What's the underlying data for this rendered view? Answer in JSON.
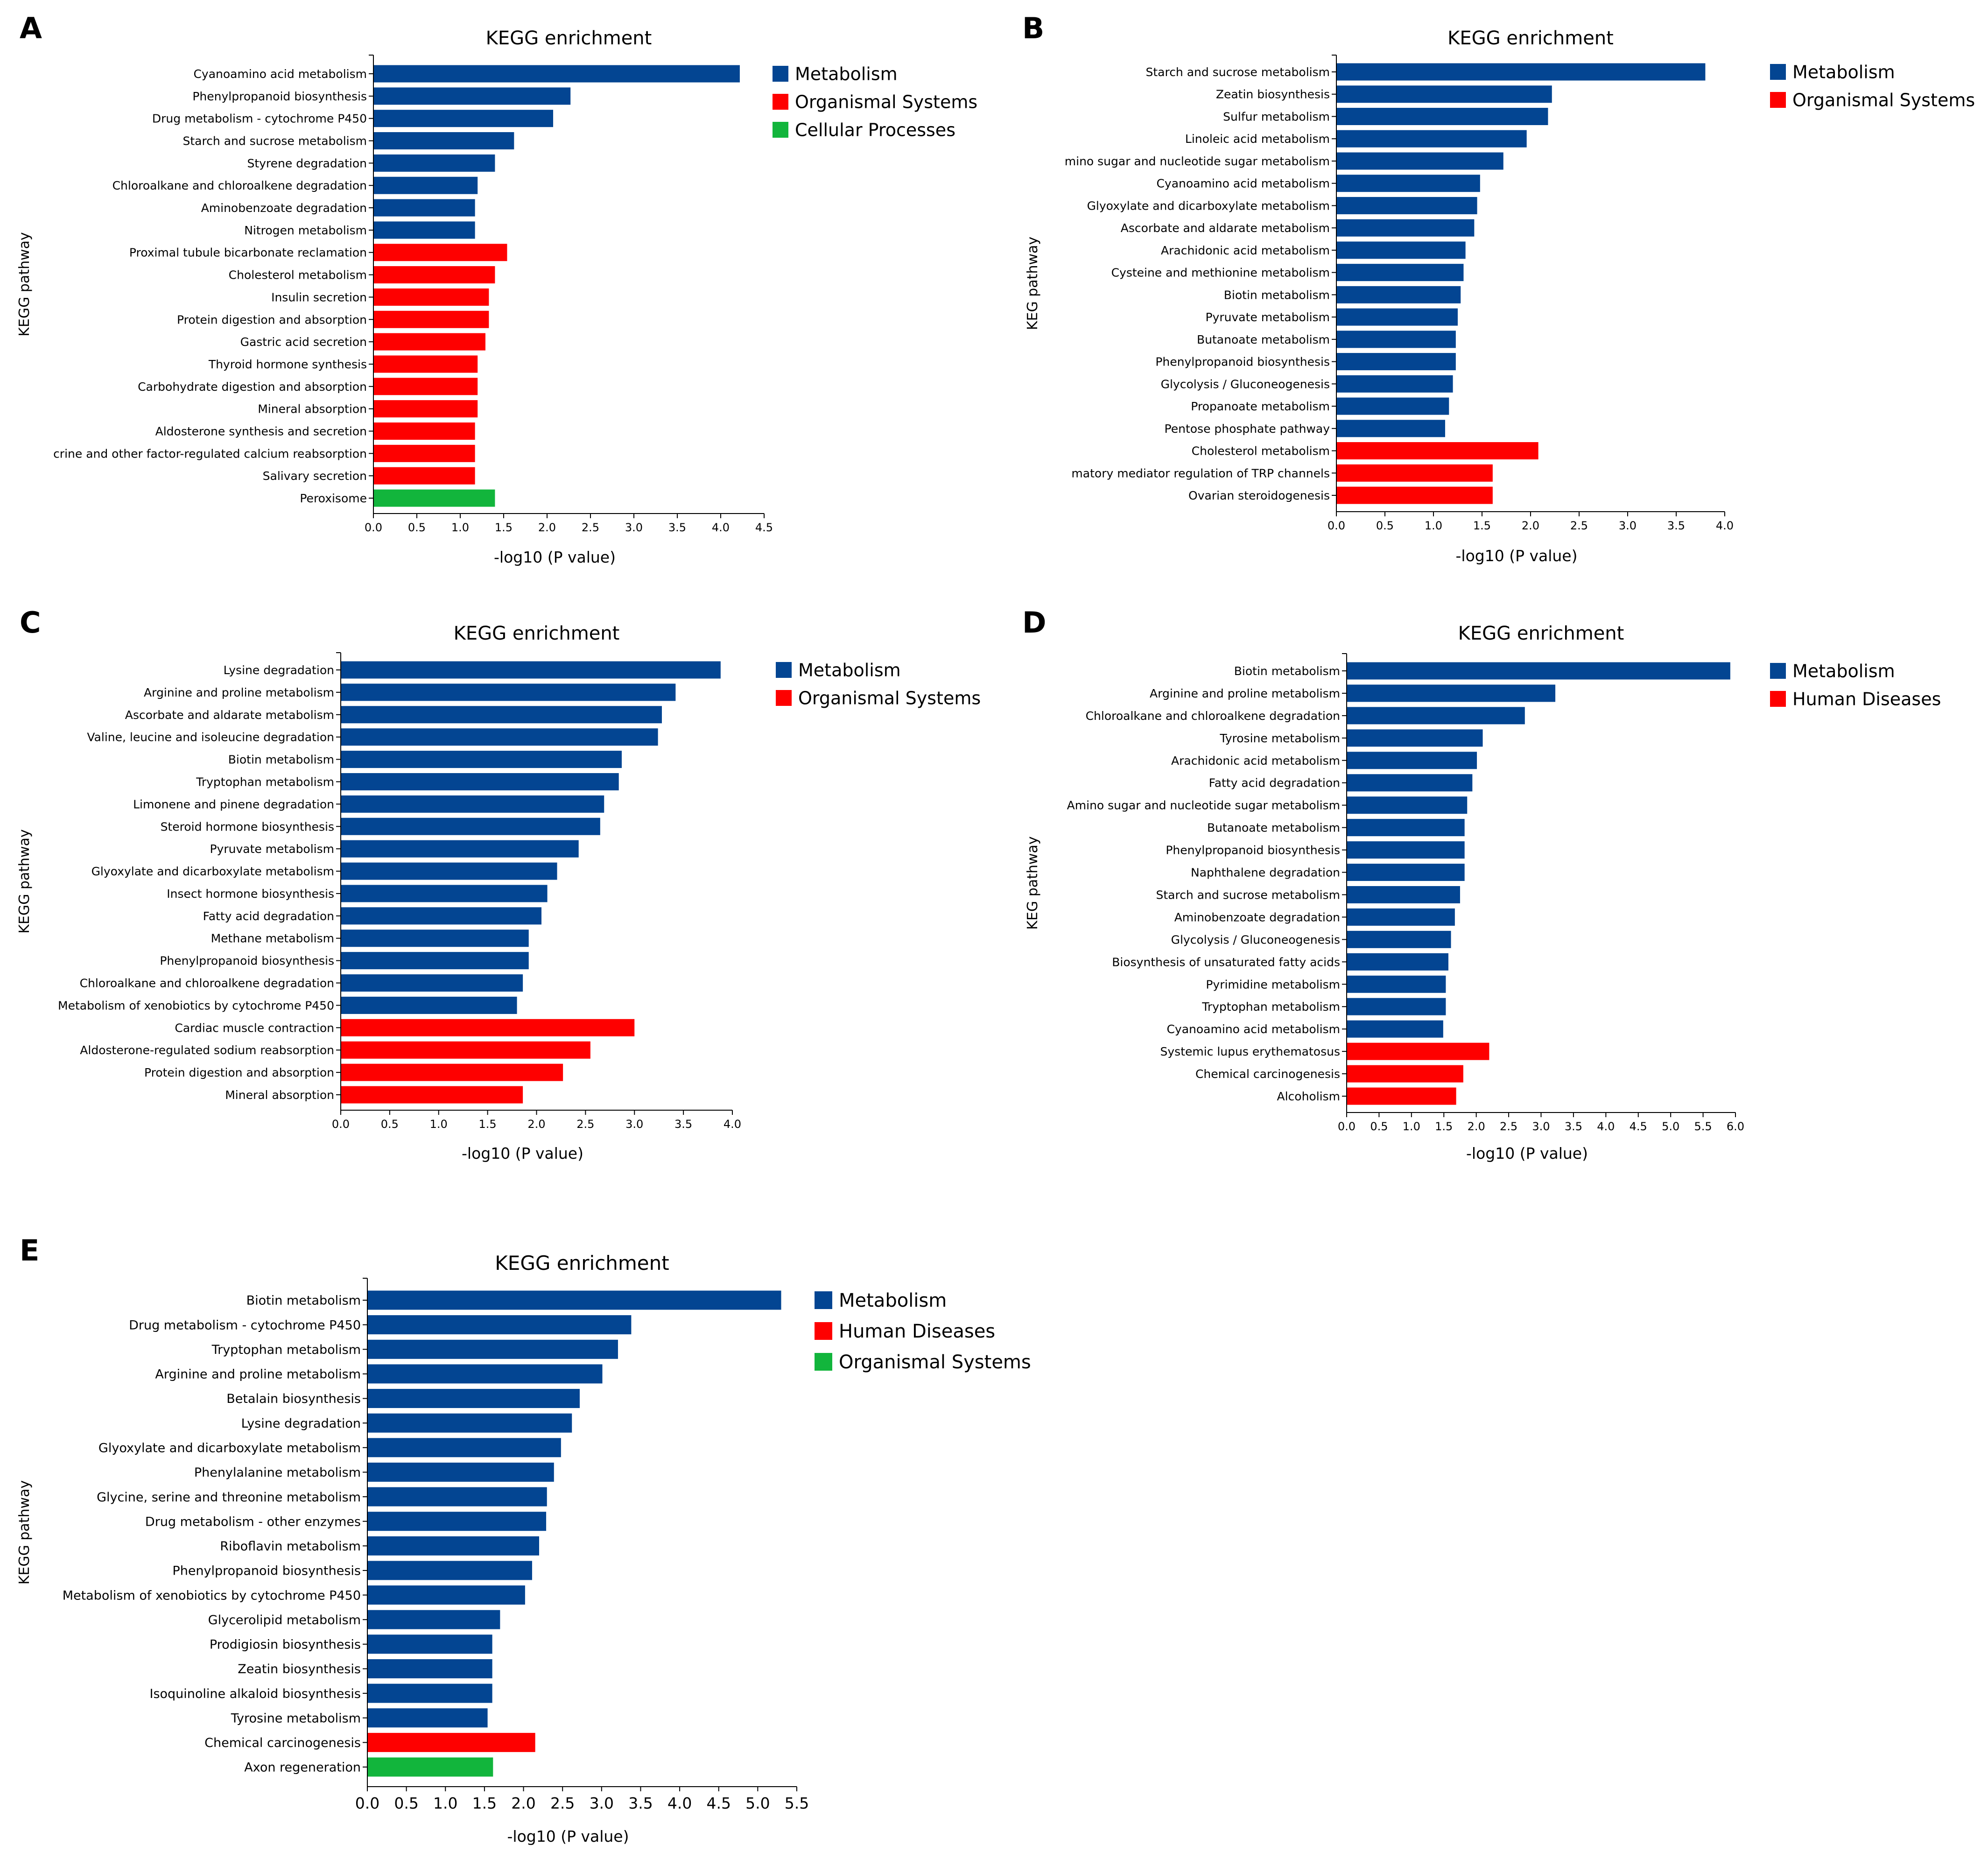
{
  "colors": {
    "Metabolism": "#034592",
    "Organismal Systems": "#fe0000",
    "Cellular Processes": "#12b53c",
    "Human Diseases": "#fe0000",
    "Organismal Systems E": "#12b53c"
  },
  "chart_data": [
    {
      "panel": "A",
      "type": "bar",
      "orientation": "horizontal",
      "title": "KEGG enrichment",
      "xlabel": "-log10 (P value)",
      "ylabel": "KEGG pathway",
      "xlim": [
        0,
        4.5
      ],
      "xticks": [
        "0.0",
        "0.5",
        "1.0",
        "1.5",
        "2.0",
        "2.5",
        "3.0",
        "3.5",
        "4.0",
        "4.5"
      ],
      "legend": [
        {
          "label": "Metabolism",
          "color": "#034592"
        },
        {
          "label": "Organismal Systems",
          "color": "#fe0000"
        },
        {
          "label": "Cellular Processes",
          "color": "#12b53c"
        }
      ],
      "bars": [
        {
          "label": "Cyanoamino acid metabolism",
          "value": 4.22,
          "category": "Metabolism"
        },
        {
          "label": "Phenylpropanoid biosynthesis",
          "value": 2.27,
          "category": "Metabolism"
        },
        {
          "label": "Drug metabolism - cytochrome P450",
          "value": 2.07,
          "category": "Metabolism"
        },
        {
          "label": "Starch and sucrose metabolism",
          "value": 1.62,
          "category": "Metabolism"
        },
        {
          "label": "Styrene degradation",
          "value": 1.4,
          "category": "Metabolism"
        },
        {
          "label": "Chloroalkane and chloroalkene degradation",
          "value": 1.2,
          "category": "Metabolism"
        },
        {
          "label": "Aminobenzoate degradation",
          "value": 1.17,
          "category": "Metabolism"
        },
        {
          "label": "Nitrogen metabolism",
          "value": 1.17,
          "category": "Metabolism"
        },
        {
          "label": "Proximal tubule bicarbonate reclamation",
          "value": 1.54,
          "category": "Organismal Systems"
        },
        {
          "label": "Cholesterol metabolism",
          "value": 1.4,
          "category": "Organismal Systems"
        },
        {
          "label": "Insulin secretion",
          "value": 1.33,
          "category": "Organismal Systems"
        },
        {
          "label": "Protein digestion and absorption",
          "value": 1.33,
          "category": "Organismal Systems"
        },
        {
          "label": "Gastric acid secretion",
          "value": 1.29,
          "category": "Organismal Systems"
        },
        {
          "label": "Thyroid hormone synthesis",
          "value": 1.2,
          "category": "Organismal Systems"
        },
        {
          "label": "Carbohydrate digestion and absorption",
          "value": 1.2,
          "category": "Organismal Systems"
        },
        {
          "label": "Mineral absorption",
          "value": 1.2,
          "category": "Organismal Systems"
        },
        {
          "label": "Aldosterone synthesis and secretion",
          "value": 1.17,
          "category": "Organismal Systems"
        },
        {
          "label": "crine and other factor-regulated calcium reabsorption",
          "value": 1.17,
          "category": "Organismal Systems"
        },
        {
          "label": "Salivary secretion",
          "value": 1.17,
          "category": "Organismal Systems"
        },
        {
          "label": "Peroxisome",
          "value": 1.4,
          "category": "Cellular Processes"
        }
      ]
    },
    {
      "panel": "B",
      "type": "bar",
      "orientation": "horizontal",
      "title": "KEGG enrichment",
      "xlabel": "-log10 (P value)",
      "ylabel": "KEG pathway",
      "xlim": [
        0,
        4.0
      ],
      "xticks": [
        "0.0",
        "0.5",
        "1.0",
        "1.5",
        "2.0",
        "2.5",
        "3.0",
        "3.5",
        "4.0"
      ],
      "legend": [
        {
          "label": "Metabolism",
          "color": "#034592"
        },
        {
          "label": "Organismal Systems",
          "color": "#fe0000"
        }
      ],
      "bars": [
        {
          "label": "Starch and sucrose metabolism",
          "value": 3.8,
          "category": "Metabolism"
        },
        {
          "label": "Zeatin biosynthesis",
          "value": 2.22,
          "category": "Metabolism"
        },
        {
          "label": "Sulfur metabolism",
          "value": 2.18,
          "category": "Metabolism"
        },
        {
          "label": "Linoleic acid metabolism",
          "value": 1.96,
          "category": "Metabolism"
        },
        {
          "label": "mino sugar and nucleotide sugar metabolism",
          "value": 1.72,
          "category": "Metabolism"
        },
        {
          "label": "Cyanoamino acid metabolism",
          "value": 1.48,
          "category": "Metabolism"
        },
        {
          "label": "Glyoxylate and dicarboxylate metabolism",
          "value": 1.45,
          "category": "Metabolism"
        },
        {
          "label": "Ascorbate and aldarate metabolism",
          "value": 1.42,
          "category": "Metabolism"
        },
        {
          "label": "Arachidonic acid metabolism",
          "value": 1.33,
          "category": "Metabolism"
        },
        {
          "label": "Cysteine and methionine metabolism",
          "value": 1.31,
          "category": "Metabolism"
        },
        {
          "label": "Biotin metabolism",
          "value": 1.28,
          "category": "Metabolism"
        },
        {
          "label": "Pyruvate metabolism",
          "value": 1.25,
          "category": "Metabolism"
        },
        {
          "label": "Butanoate metabolism",
          "value": 1.23,
          "category": "Metabolism"
        },
        {
          "label": "Phenylpropanoid biosynthesis",
          "value": 1.23,
          "category": "Metabolism"
        },
        {
          "label": "Glycolysis / Gluconeogenesis",
          "value": 1.2,
          "category": "Metabolism"
        },
        {
          "label": "Propanoate metabolism",
          "value": 1.16,
          "category": "Metabolism"
        },
        {
          "label": "Pentose phosphate pathway",
          "value": 1.12,
          "category": "Metabolism"
        },
        {
          "label": "Cholesterol metabolism",
          "value": 2.08,
          "category": "Organismal Systems"
        },
        {
          "label": "matory mediator regulation of TRP channels",
          "value": 1.61,
          "category": "Organismal Systems"
        },
        {
          "label": "Ovarian steroidogenesis",
          "value": 1.61,
          "category": "Organismal Systems"
        }
      ]
    },
    {
      "panel": "C",
      "type": "bar",
      "orientation": "horizontal",
      "title": "KEGG enrichment",
      "xlabel": "-log10 (P value)",
      "ylabel": "KEGG pathway",
      "xlim": [
        0,
        4.0
      ],
      "xticks": [
        "0.0",
        "0.5",
        "1.0",
        "1.5",
        "2.0",
        "2.5",
        "3.0",
        "3.5",
        "4.0"
      ],
      "legend": [
        {
          "label": "Metabolism",
          "color": "#034592"
        },
        {
          "label": "Organismal Systems",
          "color": "#fe0000"
        }
      ],
      "bars": [
        {
          "label": "Lysine degradation",
          "value": 3.88,
          "category": "Metabolism"
        },
        {
          "label": "Arginine and proline metabolism",
          "value": 3.42,
          "category": "Metabolism"
        },
        {
          "label": "Ascorbate and aldarate metabolism",
          "value": 3.28,
          "category": "Metabolism"
        },
        {
          "label": "Valine, leucine and isoleucine degradation",
          "value": 3.24,
          "category": "Metabolism"
        },
        {
          "label": "Biotin metabolism",
          "value": 2.87,
          "category": "Metabolism"
        },
        {
          "label": "Tryptophan metabolism",
          "value": 2.84,
          "category": "Metabolism"
        },
        {
          "label": "Limonene and pinene degradation",
          "value": 2.69,
          "category": "Metabolism"
        },
        {
          "label": "Steroid hormone biosynthesis",
          "value": 2.65,
          "category": "Metabolism"
        },
        {
          "label": "Pyruvate metabolism",
          "value": 2.43,
          "category": "Metabolism"
        },
        {
          "label": "Glyoxylate and dicarboxylate metabolism",
          "value": 2.21,
          "category": "Metabolism"
        },
        {
          "label": "Insect hormone biosynthesis",
          "value": 2.11,
          "category": "Metabolism"
        },
        {
          "label": "Fatty acid degradation",
          "value": 2.05,
          "category": "Metabolism"
        },
        {
          "label": "Methane metabolism",
          "value": 1.92,
          "category": "Metabolism"
        },
        {
          "label": "Phenylpropanoid biosynthesis",
          "value": 1.92,
          "category": "Metabolism"
        },
        {
          "label": "Chloroalkane and chloroalkene degradation",
          "value": 1.86,
          "category": "Metabolism"
        },
        {
          "label": "Metabolism of xenobiotics by cytochrome P450",
          "value": 1.8,
          "category": "Metabolism"
        },
        {
          "label": "Cardiac muscle contraction",
          "value": 3.0,
          "category": "Organismal Systems"
        },
        {
          "label": "Aldosterone-regulated sodium reabsorption",
          "value": 2.55,
          "category": "Organismal Systems"
        },
        {
          "label": "Protein digestion and absorption",
          "value": 2.27,
          "category": "Organismal Systems"
        },
        {
          "label": "Mineral absorption",
          "value": 1.86,
          "category": "Organismal Systems"
        }
      ]
    },
    {
      "panel": "D",
      "type": "bar",
      "orientation": "horizontal",
      "title": "KEGG enrichment",
      "xlabel": "-log10 (P value)",
      "ylabel": "KEG pathway",
      "xlim": [
        0,
        6.0
      ],
      "xticks": [
        "0.0",
        "0.5",
        "1.0",
        "1.5",
        "2.0",
        "2.5",
        "3.0",
        "3.5",
        "4.0",
        "4.5",
        "5.0",
        "5.5",
        "6.0"
      ],
      "legend": [
        {
          "label": "Metabolism",
          "color": "#034592"
        },
        {
          "label": "Human Diseases",
          "color": "#fe0000"
        }
      ],
      "bars": [
        {
          "label": "Biotin metabolism",
          "value": 5.92,
          "category": "Metabolism"
        },
        {
          "label": "Arginine and proline metabolism",
          "value": 3.22,
          "category": "Metabolism"
        },
        {
          "label": "Chloroalkane and chloroalkene degradation",
          "value": 2.75,
          "category": "Metabolism"
        },
        {
          "label": "Tyrosine metabolism",
          "value": 2.1,
          "category": "Metabolism"
        },
        {
          "label": "Arachidonic acid metabolism",
          "value": 2.01,
          "category": "Metabolism"
        },
        {
          "label": "Fatty acid degradation",
          "value": 1.94,
          "category": "Metabolism"
        },
        {
          "label": "Amino sugar and nucleotide sugar metabolism",
          "value": 1.86,
          "category": "Metabolism"
        },
        {
          "label": "Butanoate metabolism",
          "value": 1.82,
          "category": "Metabolism"
        },
        {
          "label": "Phenylpropanoid biosynthesis",
          "value": 1.82,
          "category": "Metabolism"
        },
        {
          "label": "Naphthalene degradation",
          "value": 1.82,
          "category": "Metabolism"
        },
        {
          "label": "Starch and sucrose metabolism",
          "value": 1.75,
          "category": "Metabolism"
        },
        {
          "label": "Aminobenzoate degradation",
          "value": 1.67,
          "category": "Metabolism"
        },
        {
          "label": "Glycolysis / Gluconeogenesis",
          "value": 1.61,
          "category": "Metabolism"
        },
        {
          "label": "Biosynthesis of unsaturated fatty acids",
          "value": 1.57,
          "category": "Metabolism"
        },
        {
          "label": "Pyrimidine metabolism",
          "value": 1.53,
          "category": "Metabolism"
        },
        {
          "label": "Tryptophan metabolism",
          "value": 1.53,
          "category": "Metabolism"
        },
        {
          "label": "Cyanoamino acid metabolism",
          "value": 1.49,
          "category": "Metabolism"
        },
        {
          "label": "Systemic lupus erythematosus",
          "value": 2.2,
          "category": "Human Diseases"
        },
        {
          "label": "Chemical carcinogenesis",
          "value": 1.8,
          "category": "Human Diseases"
        },
        {
          "label": "Alcoholism",
          "value": 1.69,
          "category": "Human Diseases"
        }
      ]
    },
    {
      "panel": "E",
      "type": "bar",
      "orientation": "horizontal",
      "title": "KEGG enrichment",
      "xlabel": "-log10 (P value)",
      "ylabel": "KEGG pathway",
      "xlim": [
        0,
        5.5
      ],
      "xticks": [
        "0.0",
        "0.5",
        "1.0",
        "1.5",
        "2.0",
        "2.5",
        "3.0",
        "3.5",
        "4.0",
        "4.5",
        "5.0",
        "5.5"
      ],
      "legend": [
        {
          "label": "Metabolism",
          "color": "#034592"
        },
        {
          "label": "Human Diseases",
          "color": "#fe0000"
        },
        {
          "label": "Organismal Systems",
          "color": "#12b53c"
        }
      ],
      "bars": [
        {
          "label": "Biotin metabolism",
          "value": 5.3,
          "category": "Metabolism"
        },
        {
          "label": "Drug metabolism - cytochrome P450",
          "value": 3.38,
          "category": "Metabolism"
        },
        {
          "label": "Tryptophan metabolism",
          "value": 3.21,
          "category": "Metabolism"
        },
        {
          "label": "Arginine and proline metabolism",
          "value": 3.01,
          "category": "Metabolism"
        },
        {
          "label": "Betalain biosynthesis",
          "value": 2.72,
          "category": "Metabolism"
        },
        {
          "label": "Lysine degradation",
          "value": 2.62,
          "category": "Metabolism"
        },
        {
          "label": "Glyoxylate and dicarboxylate metabolism",
          "value": 2.48,
          "category": "Metabolism"
        },
        {
          "label": "Phenylalanine metabolism",
          "value": 2.39,
          "category": "Metabolism"
        },
        {
          "label": "Glycine, serine and threonine metabolism",
          "value": 2.3,
          "category": "Metabolism"
        },
        {
          "label": "Drug metabolism - other enzymes",
          "value": 2.29,
          "category": "Metabolism"
        },
        {
          "label": "Riboflavin metabolism",
          "value": 2.2,
          "category": "Metabolism"
        },
        {
          "label": "Phenylpropanoid biosynthesis",
          "value": 2.11,
          "category": "Metabolism"
        },
        {
          "label": "Metabolism of xenobiotics by cytochrome P450",
          "value": 2.02,
          "category": "Metabolism"
        },
        {
          "label": "Glycerolipid metabolism",
          "value": 1.7,
          "category": "Metabolism"
        },
        {
          "label": "Prodigiosin biosynthesis",
          "value": 1.6,
          "category": "Metabolism"
        },
        {
          "label": "Zeatin biosynthesis",
          "value": 1.6,
          "category": "Metabolism"
        },
        {
          "label": "Isoquinoline alkaloid biosynthesis",
          "value": 1.6,
          "category": "Metabolism"
        },
        {
          "label": "Tyrosine metabolism",
          "value": 1.54,
          "category": "Metabolism"
        },
        {
          "label": "Chemical carcinogenesis",
          "value": 2.15,
          "category": "Human Diseases"
        },
        {
          "label": "Axon regeneration",
          "value": 1.61,
          "category": "Organismal Systems"
        }
      ]
    }
  ]
}
